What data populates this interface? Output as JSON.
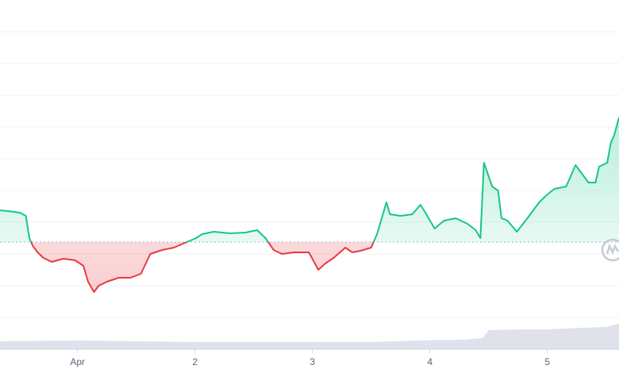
{
  "chart_data": {
    "type": "line",
    "x": [
      0.34,
      0.41,
      0.51,
      0.56,
      0.59,
      0.62,
      0.66,
      0.71,
      0.78,
      0.88,
      0.98,
      1.05,
      1.09,
      1.14,
      1.18,
      1.25,
      1.35,
      1.45,
      1.54,
      1.62,
      1.72,
      1.82,
      1.93,
      2.01,
      2.06,
      2.16,
      2.3,
      2.43,
      2.53,
      2.6,
      2.67,
      2.74,
      2.84,
      2.97,
      3.05,
      3.11,
      3.18,
      3.28,
      3.34,
      3.41,
      3.5,
      3.55,
      3.59,
      3.63,
      3.66,
      3.75,
      3.85,
      3.92,
      3.97,
      4.04,
      4.12,
      4.22,
      4.32,
      4.39,
      4.43,
      4.46,
      4.53,
      4.58,
      4.61,
      4.66,
      4.74,
      4.83,
      4.93,
      5.0,
      5.06,
      5.16,
      5.24,
      5.3,
      5.35,
      5.41,
      5.44,
      5.51,
      5.54,
      5.57,
      5.61
    ],
    "values": [
      175,
      174,
      172,
      168,
      140,
      130,
      122,
      115,
      110,
      114,
      112,
      105,
      85,
      72,
      80,
      85,
      90,
      90,
      95,
      120,
      125,
      128,
      135,
      140,
      145,
      148,
      146,
      147,
      150,
      140,
      125,
      120,
      122,
      122,
      100,
      108,
      115,
      128,
      122,
      124,
      128,
      145,
      165,
      185,
      170,
      168,
      170,
      182,
      170,
      152,
      162,
      165,
      158,
      150,
      140,
      235,
      205,
      200,
      165,
      162,
      148,
      165,
      185,
      195,
      202,
      205,
      232,
      220,
      210,
      210,
      230,
      235,
      260,
      270,
      292
    ],
    "baseline": 135,
    "up_color": "#16c784",
    "down_color": "#ea3943",
    "volume": {
      "x": [
        0.34,
        1.0,
        1.5,
        2.0,
        2.5,
        3.0,
        3.5,
        3.9,
        4.3,
        4.45,
        4.5,
        4.8,
        5.0,
        5.3,
        5.5,
        5.61
      ],
      "values": [
        10,
        11,
        10,
        9,
        9,
        9,
        9,
        11,
        12,
        14,
        24,
        25,
        25,
        27,
        28,
        32
      ],
      "color": "#dfe2ea"
    },
    "vlim": [
      0,
      440
    ],
    "xlim": [
      0.34,
      5.61
    ],
    "xticks": [
      {
        "value": 1,
        "label": "Apr"
      },
      2,
      3,
      4,
      5
    ],
    "ylim": [
      0,
      440
    ],
    "yticks": [
      40,
      80,
      120,
      160,
      200,
      240,
      280,
      320,
      360,
      400
    ],
    "grid": true
  }
}
